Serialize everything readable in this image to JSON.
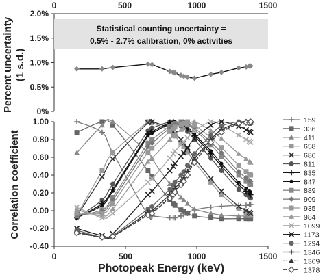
{
  "chart_data": [
    {
      "type": "line",
      "ylabel": "Percent uncertainty (1 s.d.)",
      "xlabel": "",
      "xlim": [
        0,
        1500
      ],
      "ylim": [
        0,
        2.0
      ],
      "x_ticks": [
        "0",
        "500",
        "1000",
        "1500"
      ],
      "y_ticks": [
        "0%",
        "0.5%",
        "1.0%",
        "1.5%",
        "2.0%"
      ],
      "grid": false,
      "annotation": "Statistical counting uncertainty = 0.5% - 2.7% calibration,  0% activities",
      "series": [
        {
          "x": [
            159,
            336,
            411,
            658,
            686,
            811,
            835,
            847,
            889,
            909,
            935,
            984,
            1099,
            1173,
            1294,
            1346,
            1369,
            1378
          ],
          "values": [
            0.87,
            0.87,
            0.9,
            0.97,
            0.96,
            0.82,
            0.8,
            0.79,
            0.74,
            0.72,
            0.7,
            0.68,
            0.76,
            0.8,
            0.89,
            0.91,
            0.93,
            0.93
          ]
        }
      ]
    },
    {
      "type": "line",
      "ylabel": "Correlation coefficient",
      "xlabel": "Photopeak Energy (keV)",
      "xlim": [
        0,
        1500
      ],
      "ylim": [
        -0.4,
        1.0
      ],
      "x_ticks": [
        "0",
        "500",
        "1000",
        "1500"
      ],
      "y_ticks": [
        "-0.40",
        "-0.20",
        "0.00",
        "0.20",
        "0.40",
        "0.60",
        "0.80",
        "1.00"
      ],
      "grid": false,
      "legend_position": "right",
      "x": [
        159,
        336,
        411,
        658,
        686,
        811,
        835,
        847,
        889,
        909,
        935,
        984,
        1099,
        1173,
        1294,
        1346,
        1369,
        1378
      ],
      "series": [
        {
          "name": "159",
          "color": "#777777",
          "dash": "",
          "marker": "plus",
          "values": [
            1.0,
            0.88,
            0.65,
            -0.05,
            -0.06,
            -0.08,
            -0.08,
            -0.08,
            -0.06,
            -0.05,
            -0.03,
            0.01,
            0.04,
            0.05,
            0.06,
            0.06,
            0.07,
            0.07
          ]
        },
        {
          "name": "336",
          "color": "#666666",
          "dash": "",
          "marker": "square",
          "values": [
            0.88,
            1.0,
            0.96,
            0.45,
            0.38,
            0.12,
            0.08,
            0.06,
            0.01,
            -0.01,
            -0.03,
            -0.06,
            -0.08,
            -0.09,
            -0.09,
            -0.09,
            -0.09,
            -0.09
          ]
        },
        {
          "name": "411",
          "color": "#888888",
          "dash": "",
          "marker": "triangle",
          "values": [
            0.65,
            0.96,
            1.0,
            0.65,
            0.58,
            0.3,
            0.24,
            0.22,
            0.15,
            0.12,
            0.08,
            0.02,
            -0.03,
            -0.05,
            -0.06,
            -0.06,
            -0.06,
            -0.06
          ]
        },
        {
          "name": "658",
          "color": "#999999",
          "dash": "",
          "marker": "square",
          "values": [
            -0.05,
            0.45,
            0.65,
            1.0,
            0.99,
            0.9,
            0.86,
            0.84,
            0.76,
            0.72,
            0.66,
            0.55,
            0.32,
            0.18,
            0.02,
            -0.02,
            -0.04,
            -0.05
          ]
        },
        {
          "name": "686",
          "color": "#333333",
          "dash": "",
          "marker": "x",
          "values": [
            -0.06,
            0.38,
            0.58,
            0.99,
            1.0,
            0.93,
            0.89,
            0.87,
            0.8,
            0.76,
            0.7,
            0.59,
            0.36,
            0.22,
            0.05,
            0.0,
            -0.02,
            -0.03
          ]
        },
        {
          "name": "811",
          "color": "#555555",
          "dash": "",
          "marker": "circle",
          "values": [
            -0.08,
            0.12,
            0.3,
            0.9,
            0.93,
            1.0,
            0.99,
            0.98,
            0.95,
            0.93,
            0.89,
            0.8,
            0.59,
            0.45,
            0.24,
            0.18,
            0.15,
            0.14
          ]
        },
        {
          "name": "835",
          "color": "#111111",
          "dash": "",
          "marker": "plus",
          "values": [
            -0.08,
            0.08,
            0.24,
            0.86,
            0.89,
            0.99,
            1.0,
            0.99,
            0.97,
            0.95,
            0.92,
            0.84,
            0.64,
            0.5,
            0.29,
            0.22,
            0.19,
            0.18
          ]
        },
        {
          "name": "847",
          "color": "#111111",
          "dash": "",
          "marker": "dot",
          "values": [
            -0.08,
            0.06,
            0.22,
            0.84,
            0.87,
            0.98,
            0.99,
            1.0,
            0.98,
            0.97,
            0.94,
            0.86,
            0.67,
            0.53,
            0.32,
            0.25,
            0.22,
            0.21
          ]
        },
        {
          "name": "889",
          "color": "#888888",
          "dash": "",
          "marker": "square",
          "values": [
            -0.06,
            0.01,
            0.15,
            0.76,
            0.8,
            0.95,
            0.97,
            0.98,
            1.0,
            0.99,
            0.97,
            0.91,
            0.74,
            0.61,
            0.4,
            0.33,
            0.3,
            0.29
          ]
        },
        {
          "name": "909",
          "color": "#777777",
          "dash": "",
          "marker": "diamond",
          "values": [
            -0.05,
            -0.01,
            0.12,
            0.72,
            0.76,
            0.93,
            0.95,
            0.97,
            0.99,
            1.0,
            0.98,
            0.93,
            0.77,
            0.65,
            0.44,
            0.37,
            0.34,
            0.33
          ]
        },
        {
          "name": "935",
          "color": "#999999",
          "dash": "",
          "marker": "square",
          "values": [
            -0.03,
            -0.03,
            0.08,
            0.66,
            0.7,
            0.89,
            0.92,
            0.94,
            0.97,
            0.98,
            1.0,
            0.96,
            0.82,
            0.71,
            0.51,
            0.44,
            0.41,
            0.4
          ]
        },
        {
          "name": "984",
          "color": "#999999",
          "dash": "",
          "marker": "triangle",
          "values": [
            0.01,
            -0.06,
            0.02,
            0.55,
            0.59,
            0.8,
            0.84,
            0.86,
            0.91,
            0.93,
            0.96,
            1.0,
            0.9,
            0.81,
            0.64,
            0.58,
            0.55,
            0.54
          ]
        },
        {
          "name": "1099",
          "color": "#aaaaaa",
          "dash": "",
          "marker": "x",
          "values": [
            0.04,
            -0.08,
            -0.03,
            0.32,
            0.36,
            0.59,
            0.64,
            0.67,
            0.74,
            0.77,
            0.82,
            0.9,
            1.0,
            0.96,
            0.85,
            0.8,
            0.78,
            0.77
          ]
        },
        {
          "name": "1173",
          "color": "#222222",
          "dash": "",
          "marker": "x",
          "values": [
            -0.2,
            -0.28,
            -0.26,
            0.18,
            0.22,
            0.45,
            0.5,
            0.53,
            0.61,
            0.65,
            0.71,
            0.81,
            0.96,
            1.0,
            0.95,
            0.91,
            0.89,
            0.88
          ]
        },
        {
          "name": "1294",
          "color": "#666666",
          "dash": "",
          "marker": "circle",
          "values": [
            -0.22,
            -0.3,
            -0.28,
            0.02,
            0.05,
            0.24,
            0.29,
            0.32,
            0.4,
            0.44,
            0.51,
            0.64,
            0.85,
            0.95,
            1.0,
            0.99,
            0.98,
            0.98
          ]
        },
        {
          "name": "1346",
          "color": "#333333",
          "dash": "",
          "marker": "plus",
          "values": [
            -0.24,
            -0.3,
            -0.29,
            -0.02,
            0.0,
            0.18,
            0.22,
            0.25,
            0.33,
            0.37,
            0.44,
            0.58,
            0.8,
            0.91,
            0.99,
            1.0,
            0.99,
            0.99
          ]
        },
        {
          "name": "1369",
          "color": "#333333",
          "dash": "2,2",
          "marker": "triangle",
          "values": [
            -0.25,
            -0.3,
            -0.29,
            -0.04,
            -0.02,
            0.15,
            0.19,
            0.22,
            0.3,
            0.34,
            0.41,
            0.55,
            0.78,
            0.89,
            0.98,
            0.99,
            1.0,
            0.99
          ]
        },
        {
          "name": "1378",
          "color": "#555555",
          "dash": "5,3",
          "marker": "diamond-open",
          "values": [
            -0.25,
            -0.3,
            -0.29,
            -0.05,
            -0.03,
            0.14,
            0.18,
            0.21,
            0.29,
            0.33,
            0.4,
            0.54,
            0.77,
            0.88,
            0.98,
            0.99,
            0.99,
            1.0
          ]
        }
      ]
    }
  ]
}
